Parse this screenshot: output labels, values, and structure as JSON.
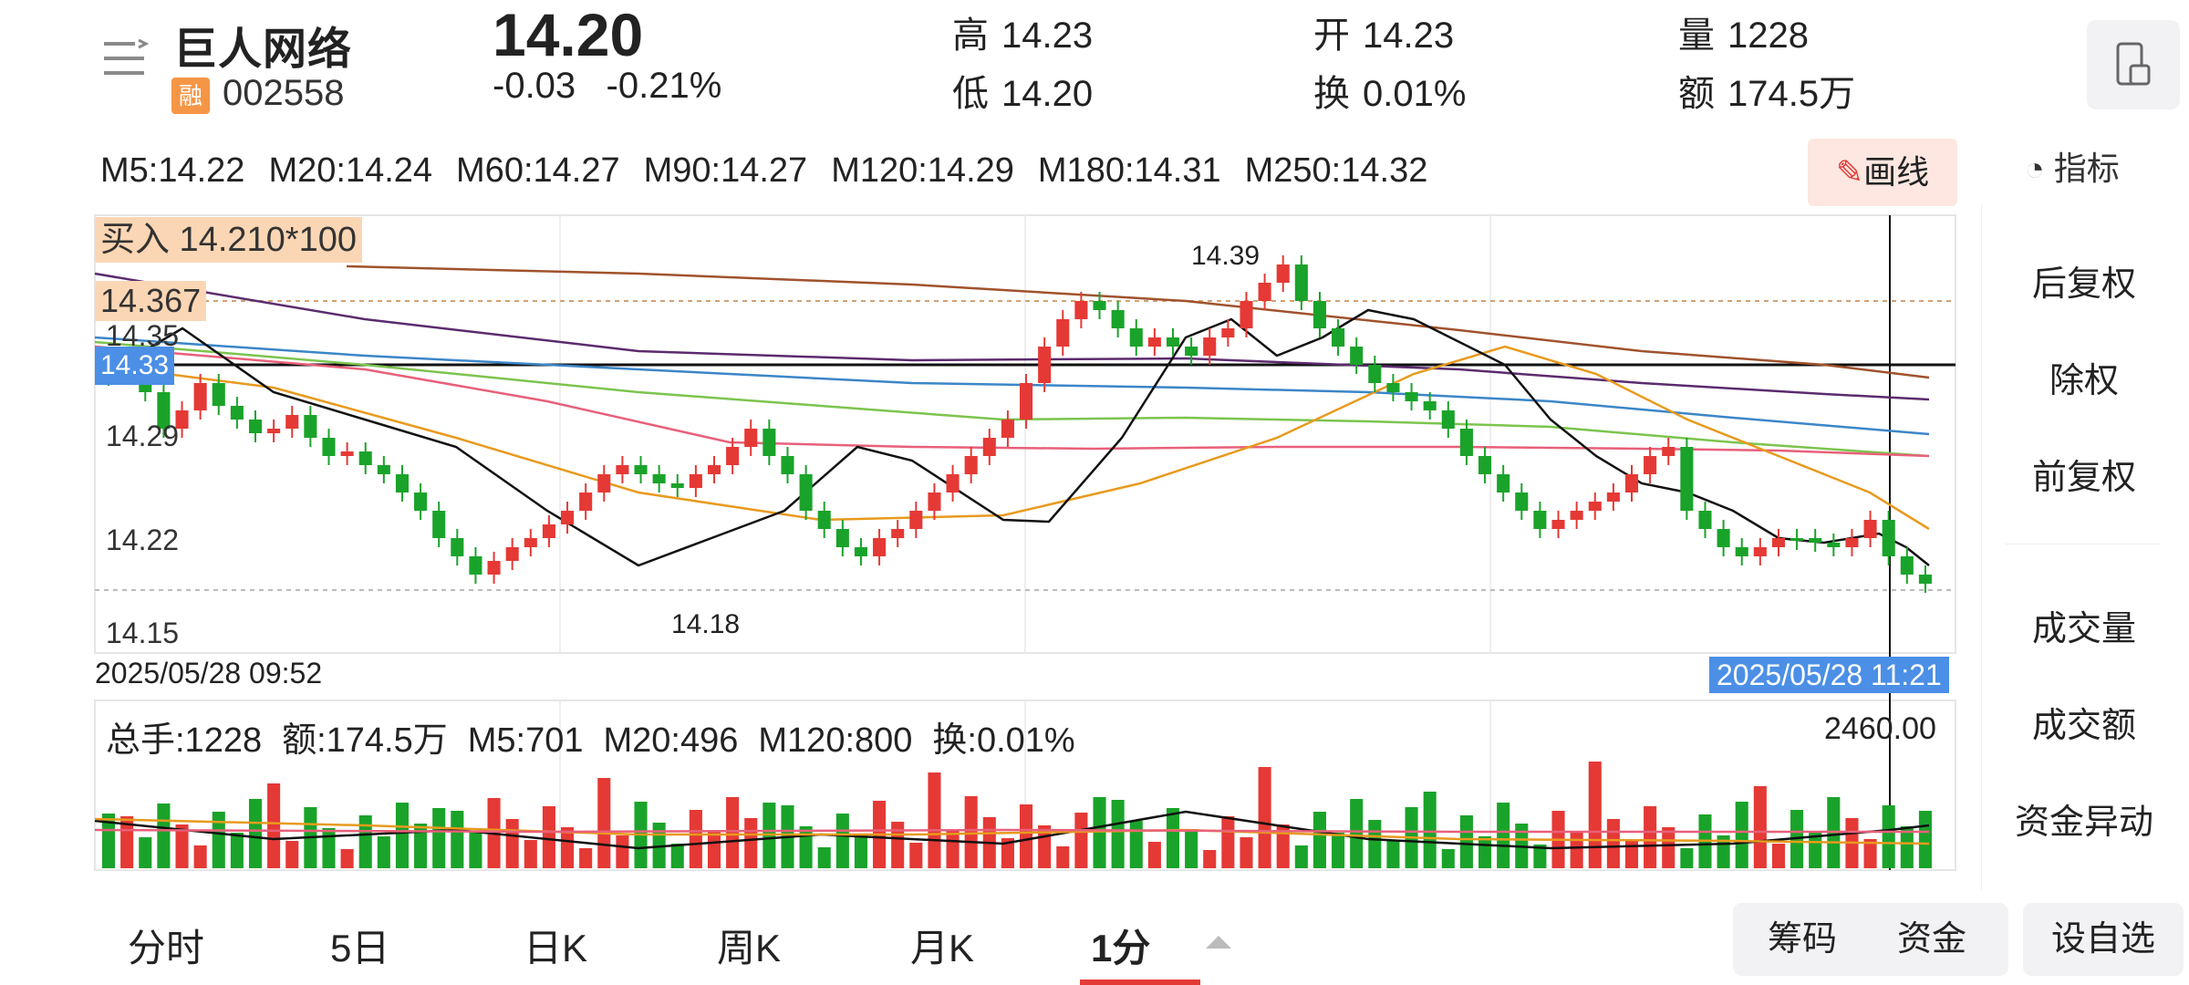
{
  "stock": {
    "name": "巨人网络",
    "rong_badge": "融",
    "code": "002558",
    "price": "14.20",
    "change": "-0.03",
    "change_pct": "-0.21%"
  },
  "quote": {
    "high_k": "高",
    "high_v": "14.23",
    "low_k": "低",
    "low_v": "14.20",
    "open_k": "开",
    "open_v": "14.23",
    "turnover_k": "换",
    "turnover_v": "0.01%",
    "volume_k": "量",
    "volume_v": "1228",
    "amount_k": "额",
    "amount_v": "174.5万"
  },
  "ma": [
    "M5:14.22",
    "M20:14.24",
    "M60:14.27",
    "M90:14.27",
    "M120:14.29",
    "M180:14.31",
    "M250:14.32"
  ],
  "toolbar": {
    "draw_label": "画线",
    "indicator_label": "指标"
  },
  "side_menu": [
    "后复权",
    "除权",
    "前复权",
    "成交量",
    "成交额",
    "资金异动"
  ],
  "chart": {
    "buy_label": "买入 14.210*100",
    "line_label": "14.367",
    "current_label": "14.33",
    "y_ticks": [
      "14.35",
      "14.29",
      "14.22",
      "14.15"
    ],
    "high_label": "14.39",
    "low_label": "14.18",
    "date_left": "2025/05/28 09:52",
    "date_right": "2025/05/28 11:21",
    "colors": {
      "up": "#e53935",
      "down": "#1aa32a",
      "ma5": "#111111",
      "ma20": "#e89a1e",
      "ma60": "#e8607a",
      "ma90": "#7cc44e",
      "ma120": "#3b86c8",
      "ma180": "#5b2b6e",
      "ma250": "#a0522d"
    }
  },
  "volume": {
    "total": "总手:1228",
    "amount": "额:174.5万",
    "m5": "M5:701",
    "m20": "M20:496",
    "m120": "M120:800",
    "turnover": "换:0.01%",
    "max": "2460.00"
  },
  "tabs": [
    "分时",
    "5日",
    "日K",
    "周K",
    "月K",
    "1分"
  ],
  "buttons": {
    "chips": "筹码",
    "funds": "资金",
    "add": "设自选"
  }
}
